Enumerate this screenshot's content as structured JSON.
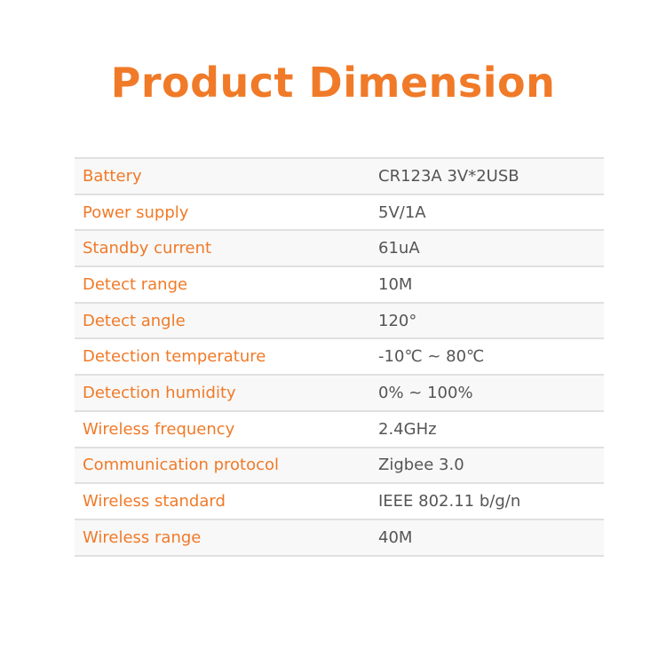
{
  "title": "Product Dimension",
  "accent_color": "#f07a28",
  "specs": [
    {
      "label": "Battery",
      "value": "CR123A 3V*2USB"
    },
    {
      "label": "Power supply",
      "value": "5V/1A"
    },
    {
      "label": "Standby current",
      "value": "61uA"
    },
    {
      "label": "Detect range",
      "value": "10M"
    },
    {
      "label": "Detect angle",
      "value": "120°"
    },
    {
      "label": "Detection temperature",
      "value": "-10℃ ~ 80℃"
    },
    {
      "label": "Detection humidity",
      "value": "0% ~ 100%"
    },
    {
      "label": "Wireless frequency",
      "value": "2.4GHz"
    },
    {
      "label": "Communication protocol",
      "value": "Zigbee 3.0"
    },
    {
      "label": "Wireless standard",
      "value": "IEEE 802.11 b/g/n"
    },
    {
      "label": "Wireless range",
      "value": "40M"
    }
  ]
}
